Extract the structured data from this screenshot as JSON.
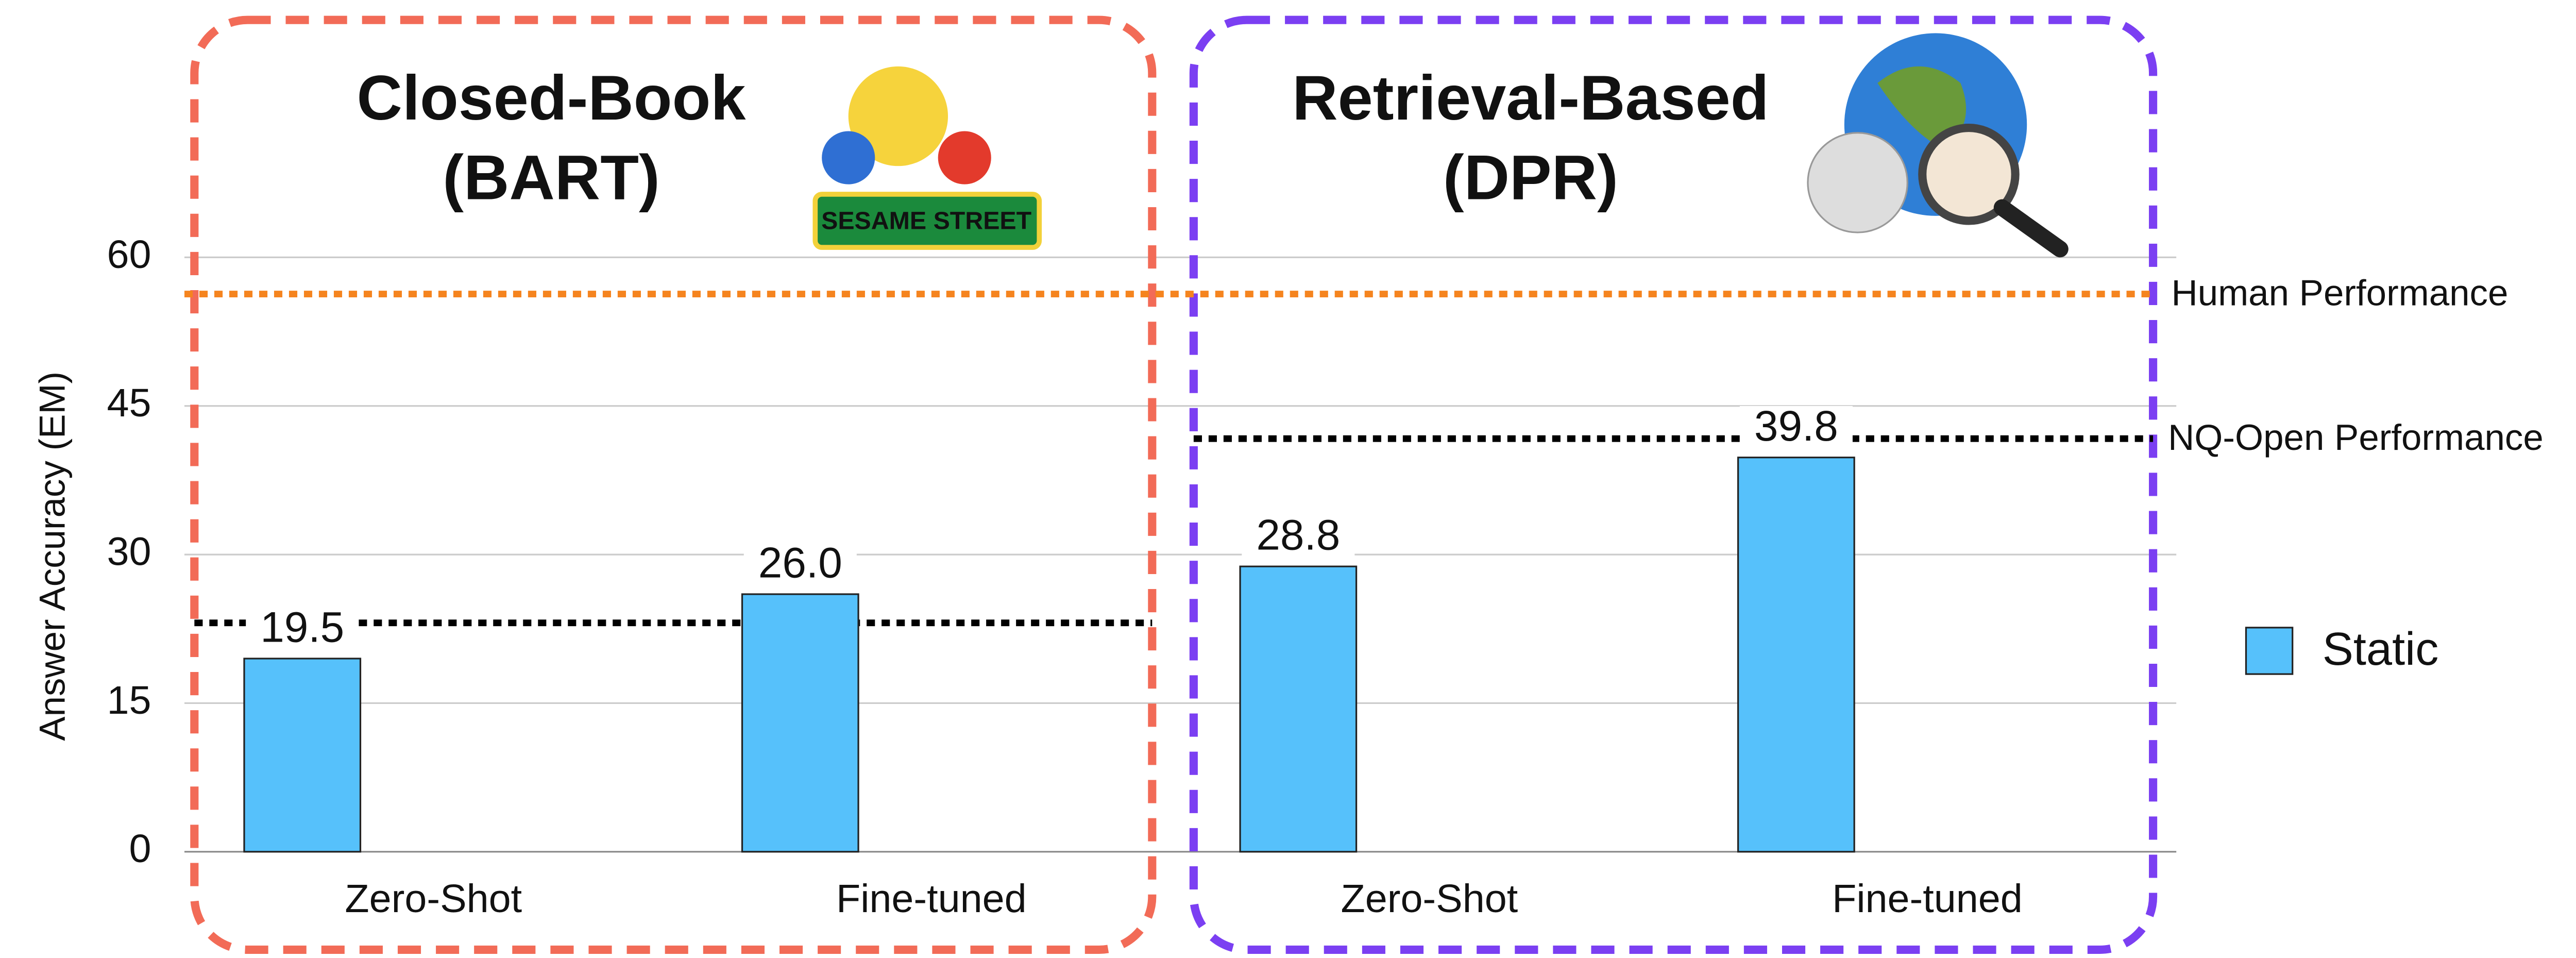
{
  "chart_data": {
    "type": "bar",
    "y_label": "Answer Accuracy (EM)",
    "categories": [
      "Zero-Shot",
      "Fine-tuned",
      "Zero-Shot",
      "Fine-tuned"
    ],
    "series": [
      {
        "name": "Static",
        "color": "#56c1fb",
        "values": [
          19.5,
          26.0,
          28.8,
          39.8
        ],
        "value_labels": [
          "19.5",
          "26.0",
          "28.8",
          "39.8"
        ]
      }
    ],
    "ylim": [
      0,
      60
    ],
    "yticks": [
      0,
      15,
      30,
      45,
      60
    ],
    "grid": true,
    "legend": "right",
    "groups": [
      {
        "title": [
          "Closed-Book",
          "(BART)"
        ],
        "color": "#f26b57",
        "nq_open": 23.1,
        "logo_text": "SESAME STREET"
      },
      {
        "title": [
          "Retrieval-Based",
          "(DPR)"
        ],
        "color": "#7b3ff2",
        "nq_open": 41.7
      }
    ],
    "human_performance": {
      "label": "Human Performance",
      "value": 56.3,
      "color": "#f5841f"
    },
    "nq_open_label": "NQ-Open Performance"
  }
}
